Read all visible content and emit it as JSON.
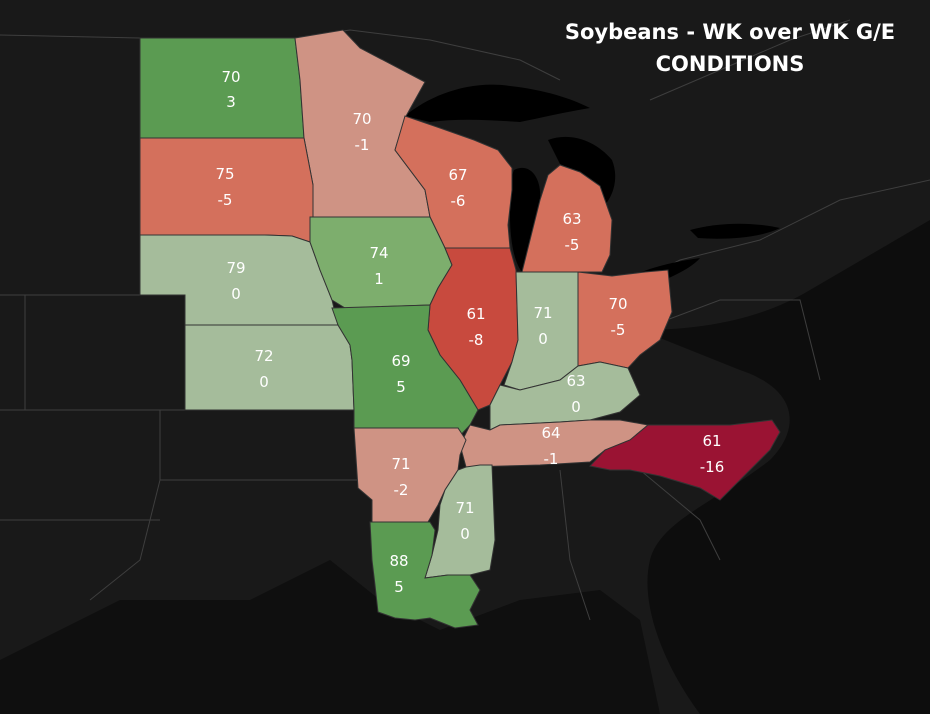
{
  "title": {
    "line1": "Soybeans - WK over WK G/E",
    "line2": "CONDITIONS"
  },
  "colors": {
    "background": "#161616",
    "land": "#1f1f1f",
    "water": "#000000",
    "strong_green": "#5b9b52",
    "mid_green": "#7dae6d",
    "light_green": "#a5bc9b",
    "light_red": "#cf9384",
    "mid_red": "#d4705c",
    "strong_red": "#c84a3e",
    "deep_red": "#9a1333"
  },
  "states": [
    {
      "id": "nd",
      "value": "70",
      "change": "3",
      "color": "#5b9b52"
    },
    {
      "id": "mn",
      "value": "70",
      "change": "-1",
      "color": "#cf9384"
    },
    {
      "id": "sd",
      "value": "75",
      "change": "-5",
      "color": "#d4705c"
    },
    {
      "id": "wi",
      "value": "67",
      "change": "-6",
      "color": "#d4705c"
    },
    {
      "id": "mi",
      "value": "63",
      "change": "-5",
      "color": "#d4705c"
    },
    {
      "id": "ne",
      "value": "79",
      "change": "0",
      "color": "#a5bc9b"
    },
    {
      "id": "ia",
      "value": "74",
      "change": "1",
      "color": "#7dae6d"
    },
    {
      "id": "il",
      "value": "61",
      "change": "-8",
      "color": "#c84a3e"
    },
    {
      "id": "in",
      "value": "71",
      "change": "0",
      "color": "#a5bc9b"
    },
    {
      "id": "oh",
      "value": "70",
      "change": "-5",
      "color": "#d4705c"
    },
    {
      "id": "ks",
      "value": "72",
      "change": "0",
      "color": "#a5bc9b"
    },
    {
      "id": "mo",
      "value": "69",
      "change": "5",
      "color": "#5b9b52"
    },
    {
      "id": "ky",
      "value": "63",
      "change": "0",
      "color": "#a5bc9b"
    },
    {
      "id": "tn",
      "value": "64",
      "change": "-1",
      "color": "#cf9384"
    },
    {
      "id": "nc",
      "value": "61",
      "change": "-16",
      "color": "#9a1333"
    },
    {
      "id": "ar",
      "value": "71",
      "change": "-2",
      "color": "#cf9384"
    },
    {
      "id": "ms",
      "value": "71",
      "change": "0",
      "color": "#a5bc9b"
    },
    {
      "id": "la",
      "value": "88",
      "change": "5",
      "color": "#5b9b52"
    }
  ]
}
